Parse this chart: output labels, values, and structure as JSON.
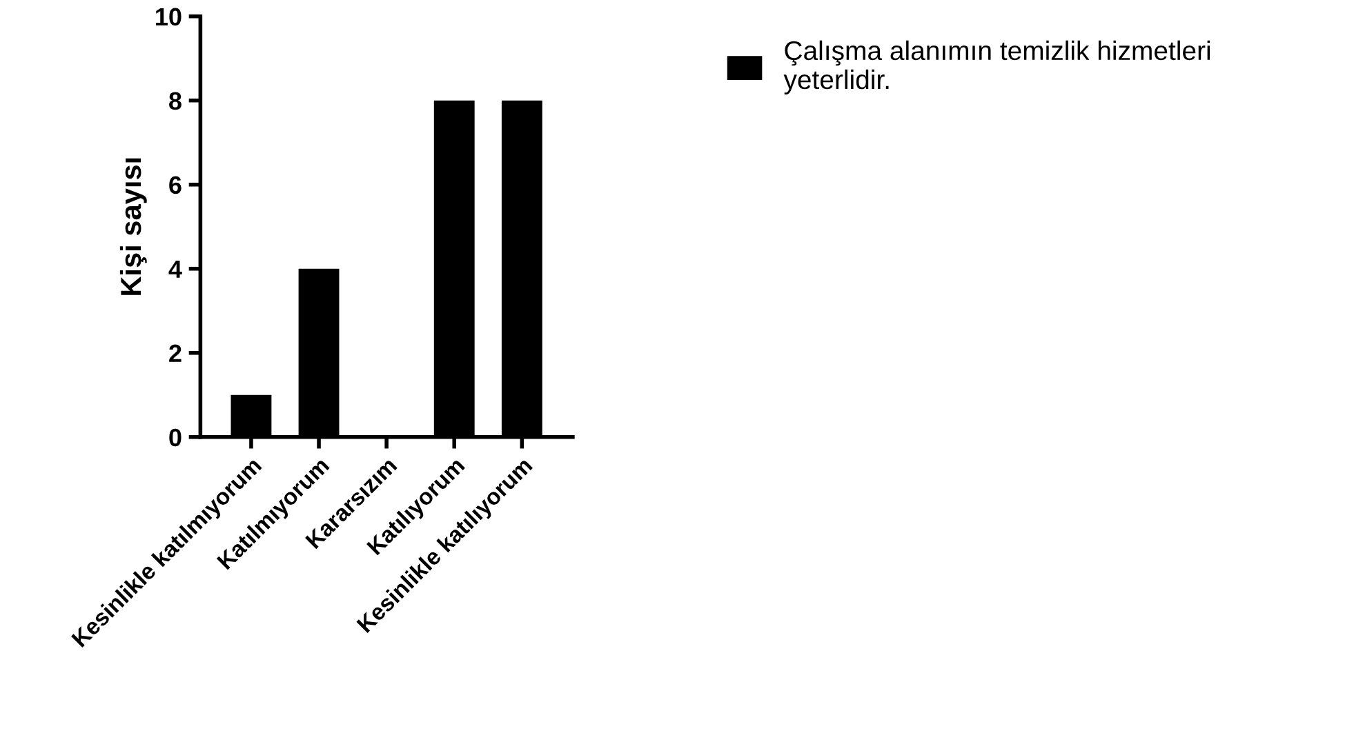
{
  "chart_data": {
    "type": "bar",
    "ylabel": "Kişi sayısı",
    "categories": [
      "Kesinlikle katılmıyorum",
      "Katılmıyorum",
      "Kararsızım",
      "Katılıyorum",
      "Kesinlikle katılıyorum"
    ],
    "series": [
      {
        "name": "Çalışma alanımın temizlik hizmetleri\nyeterlidir.",
        "color": "#000000",
        "values": [
          1,
          4,
          0,
          8,
          8
        ]
      }
    ],
    "ylim": [
      0,
      10
    ],
    "yticks": [
      0,
      2,
      4,
      6,
      8,
      10
    ],
    "grid": false,
    "legend": "top right"
  }
}
